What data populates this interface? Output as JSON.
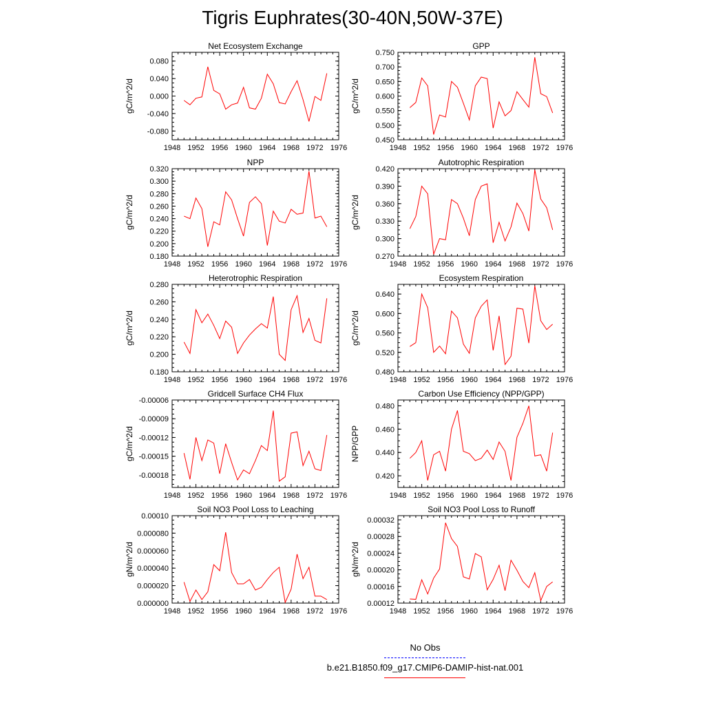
{
  "title": "Tigris Euphrates(30-40N,50W-37E)",
  "legend": {
    "obs_label": "No Obs",
    "obs_color": "#0000ff",
    "model_label": "b.e21.B1850.f09_g17.CMIP6-DAMIP-hist-nat.001",
    "model_color": "#ff0000"
  },
  "chart_data": [
    {
      "type": "line",
      "title": "Net Ecosystem Exchange",
      "ylabel": "gC/m^2/d",
      "xlim": [
        1948,
        1976
      ],
      "xticks": [
        1948,
        1952,
        1956,
        1960,
        1964,
        1968,
        1972,
        1976
      ],
      "ylim": [
        -0.1,
        0.1
      ],
      "yticks": [
        "-0.080",
        "-0.040",
        "0.000",
        "0.040",
        "0.080"
      ],
      "ytick_values": [
        -0.08,
        -0.04,
        0.0,
        0.04,
        0.08
      ],
      "x": [
        1950,
        1951,
        1952,
        1953,
        1954,
        1955,
        1956,
        1957,
        1958,
        1959,
        1960,
        1961,
        1962,
        1963,
        1964,
        1965,
        1966,
        1967,
        1968,
        1969,
        1970,
        1971,
        1972,
        1973,
        1974
      ],
      "values": [
        -0.01,
        -0.02,
        -0.005,
        -0.002,
        0.067,
        0.013,
        0.005,
        -0.03,
        -0.02,
        -0.016,
        0.02,
        -0.027,
        -0.03,
        -0.005,
        0.05,
        0.028,
        -0.015,
        -0.018,
        0.01,
        0.035,
        -0.008,
        -0.058,
        -0.001,
        -0.01,
        0.052
      ]
    },
    {
      "type": "line",
      "title": "GPP",
      "ylabel": "gC/m^2/d",
      "xlim": [
        1948,
        1976
      ],
      "xticks": [
        1948,
        1952,
        1956,
        1960,
        1964,
        1968,
        1972,
        1976
      ],
      "ylim": [
        0.45,
        0.75
      ],
      "yticks": [
        "0.450",
        "0.500",
        "0.550",
        "0.600",
        "0.650",
        "0.700",
        "0.750"
      ],
      "ytick_values": [
        0.45,
        0.5,
        0.55,
        0.6,
        0.65,
        0.7,
        0.75
      ],
      "x": [
        1950,
        1951,
        1952,
        1953,
        1954,
        1955,
        1956,
        1957,
        1958,
        1959,
        1960,
        1961,
        1962,
        1963,
        1964,
        1965,
        1966,
        1967,
        1968,
        1969,
        1970,
        1971,
        1972,
        1973,
        1974
      ],
      "values": [
        0.56,
        0.578,
        0.662,
        0.635,
        0.468,
        0.535,
        0.528,
        0.65,
        0.63,
        0.575,
        0.518,
        0.635,
        0.665,
        0.66,
        0.49,
        0.58,
        0.532,
        0.55,
        0.615,
        0.588,
        0.562,
        0.733,
        0.608,
        0.598,
        0.542
      ]
    },
    {
      "type": "line",
      "title": "NPP",
      "ylabel": "gC/m^2/d",
      "xlim": [
        1948,
        1976
      ],
      "xticks": [
        1948,
        1952,
        1956,
        1960,
        1964,
        1968,
        1972,
        1976
      ],
      "ylim": [
        0.18,
        0.32
      ],
      "yticks": [
        "0.180",
        "0.200",
        "0.220",
        "0.240",
        "0.260",
        "0.280",
        "0.300",
        "0.320"
      ],
      "ytick_values": [
        0.18,
        0.2,
        0.22,
        0.24,
        0.26,
        0.28,
        0.3,
        0.32
      ],
      "x": [
        1950,
        1951,
        1952,
        1953,
        1954,
        1955,
        1956,
        1957,
        1958,
        1959,
        1960,
        1961,
        1962,
        1963,
        1964,
        1965,
        1966,
        1967,
        1968,
        1969,
        1970,
        1971,
        1972,
        1973,
        1974
      ],
      "values": [
        0.244,
        0.24,
        0.273,
        0.256,
        0.195,
        0.235,
        0.23,
        0.283,
        0.27,
        0.24,
        0.212,
        0.266,
        0.275,
        0.264,
        0.197,
        0.252,
        0.236,
        0.233,
        0.255,
        0.247,
        0.249,
        0.316,
        0.241,
        0.244,
        0.227
      ]
    },
    {
      "type": "line",
      "title": "Autotrophic Respiration",
      "ylabel": "gC/m^2/d",
      "xlim": [
        1948,
        1976
      ],
      "xticks": [
        1948,
        1952,
        1956,
        1960,
        1964,
        1968,
        1972,
        1976
      ],
      "ylim": [
        0.27,
        0.42
      ],
      "yticks": [
        "0.270",
        "0.300",
        "0.330",
        "0.360",
        "0.390",
        "0.420"
      ],
      "ytick_values": [
        0.27,
        0.3,
        0.33,
        0.36,
        0.39,
        0.42
      ],
      "x": [
        1950,
        1951,
        1952,
        1953,
        1954,
        1955,
        1956,
        1957,
        1958,
        1959,
        1960,
        1961,
        1962,
        1963,
        1964,
        1965,
        1966,
        1967,
        1968,
        1969,
        1970,
        1971,
        1972,
        1973,
        1974
      ],
      "values": [
        0.317,
        0.338,
        0.39,
        0.377,
        0.273,
        0.3,
        0.298,
        0.367,
        0.36,
        0.335,
        0.305,
        0.367,
        0.39,
        0.394,
        0.293,
        0.328,
        0.296,
        0.32,
        0.361,
        0.343,
        0.313,
        0.418,
        0.368,
        0.353,
        0.315
      ]
    },
    {
      "type": "line",
      "title": "Heterotrophic Respiration",
      "ylabel": "gC/m^2/d",
      "xlim": [
        1948,
        1976
      ],
      "xticks": [
        1948,
        1952,
        1956,
        1960,
        1964,
        1968,
        1972,
        1976
      ],
      "ylim": [
        0.18,
        0.28
      ],
      "yticks": [
        "0.180",
        "0.200",
        "0.220",
        "0.240",
        "0.260",
        "0.280"
      ],
      "ytick_values": [
        0.18,
        0.2,
        0.22,
        0.24,
        0.26,
        0.28
      ],
      "x": [
        1950,
        1951,
        1952,
        1953,
        1954,
        1955,
        1956,
        1957,
        1958,
        1959,
        1960,
        1961,
        1962,
        1963,
        1964,
        1965,
        1966,
        1967,
        1968,
        1969,
        1970,
        1971,
        1972,
        1973,
        1974
      ],
      "values": [
        0.214,
        0.201,
        0.251,
        0.236,
        0.246,
        0.233,
        0.218,
        0.238,
        0.231,
        0.201,
        0.213,
        0.222,
        0.229,
        0.235,
        0.23,
        0.266,
        0.2,
        0.193,
        0.251,
        0.267,
        0.225,
        0.241,
        0.216,
        0.213,
        0.264
      ]
    },
    {
      "type": "line",
      "title": "Ecosystem Respiration",
      "ylabel": "gC/m^2/d",
      "xlim": [
        1948,
        1976
      ],
      "xticks": [
        1948,
        1952,
        1956,
        1960,
        1964,
        1968,
        1972,
        1976
      ],
      "ylim": [
        0.48,
        0.66
      ],
      "yticks": [
        "0.480",
        "0.520",
        "0.560",
        "0.600",
        "0.640"
      ],
      "ytick_values": [
        0.48,
        0.52,
        0.56,
        0.6,
        0.64
      ],
      "x": [
        1950,
        1951,
        1952,
        1953,
        1954,
        1955,
        1956,
        1957,
        1958,
        1959,
        1960,
        1961,
        1962,
        1963,
        1964,
        1965,
        1966,
        1967,
        1968,
        1969,
        1970,
        1971,
        1972,
        1973,
        1974
      ],
      "values": [
        0.532,
        0.54,
        0.64,
        0.612,
        0.52,
        0.533,
        0.517,
        0.605,
        0.591,
        0.537,
        0.518,
        0.591,
        0.615,
        0.628,
        0.524,
        0.595,
        0.495,
        0.512,
        0.611,
        0.609,
        0.539,
        0.657,
        0.585,
        0.567,
        0.578
      ]
    },
    {
      "type": "line",
      "title": "Gridcell Surface CH4 Flux",
      "ylabel": "gC/m^2/d",
      "xlim": [
        1948,
        1976
      ],
      "xticks": [
        1948,
        1952,
        1956,
        1960,
        1964,
        1968,
        1972,
        1976
      ],
      "ylim": [
        -0.0002,
        -6e-05
      ],
      "yticks": [
        "-0.00018",
        "-0.00015",
        "-0.00012",
        "-0.00009",
        "-0.00006"
      ],
      "ytick_values": [
        -0.00018,
        -0.00015,
        -0.00012,
        -9e-05,
        -6e-05
      ],
      "x": [
        1950,
        1951,
        1952,
        1953,
        1954,
        1955,
        1956,
        1957,
        1958,
        1959,
        1960,
        1961,
        1962,
        1963,
        1964,
        1965,
        1966,
        1967,
        1968,
        1969,
        1970,
        1971,
        1972,
        1973,
        1974
      ],
      "values": [
        -0.000145,
        -0.000187,
        -0.00012,
        -0.000157,
        -0.000124,
        -0.000129,
        -0.000178,
        -0.00013,
        -0.00016,
        -0.000188,
        -0.000172,
        -0.000178,
        -0.000157,
        -0.000133,
        -0.000141,
        -7.7e-05,
        -0.00019,
        -0.000183,
        -0.000113,
        -0.000111,
        -0.000165,
        -0.000142,
        -0.00017,
        -0.000173,
        -0.000116
      ]
    },
    {
      "type": "line",
      "title": "Carbon Use Efficiency (NPP/GPP)",
      "ylabel": "NPP/GPP",
      "xlim": [
        1948,
        1976
      ],
      "xticks": [
        1948,
        1952,
        1956,
        1960,
        1964,
        1968,
        1972,
        1976
      ],
      "ylim": [
        0.41,
        0.485
      ],
      "yticks": [
        "0.420",
        "0.440",
        "0.460",
        "0.480"
      ],
      "ytick_values": [
        0.42,
        0.44,
        0.46,
        0.48
      ],
      "x": [
        1950,
        1951,
        1952,
        1953,
        1954,
        1955,
        1956,
        1957,
        1958,
        1959,
        1960,
        1961,
        1962,
        1963,
        1964,
        1965,
        1966,
        1967,
        1968,
        1969,
        1970,
        1971,
        1972,
        1973,
        1974
      ],
      "values": [
        0.435,
        0.44,
        0.45,
        0.416,
        0.438,
        0.441,
        0.424,
        0.46,
        0.476,
        0.441,
        0.439,
        0.433,
        0.435,
        0.442,
        0.434,
        0.449,
        0.441,
        0.416,
        0.453,
        0.465,
        0.48,
        0.437,
        0.438,
        0.424,
        0.457
      ]
    },
    {
      "type": "line",
      "title": "Soil NO3 Pool Loss to Leaching",
      "ylabel": "gN/m^2/d",
      "xlim": [
        1948,
        1976
      ],
      "xticks": [
        1948,
        1952,
        1956,
        1960,
        1964,
        1968,
        1972,
        1976
      ],
      "ylim": [
        0,
        0.0001
      ],
      "yticks": [
        "0.000000",
        "0.000020",
        "0.000040",
        "0.000060",
        "0.000080",
        "0.00010"
      ],
      "ytick_values": [
        0,
        2e-05,
        4e-05,
        6e-05,
        8e-05,
        0.0001
      ],
      "x": [
        1950,
        1951,
        1952,
        1953,
        1954,
        1955,
        1956,
        1957,
        1958,
        1959,
        1960,
        1961,
        1962,
        1963,
        1964,
        1965,
        1966,
        1967,
        1968,
        1969,
        1970,
        1971,
        1972,
        1973,
        1974
      ],
      "values": [
        2.4e-05,
        2e-06,
        1.5e-05,
        4e-06,
        1.3e-05,
        4.4e-05,
        3.7e-05,
        8.1e-05,
        3.5e-05,
        2.2e-05,
        2.2e-05,
        2.7e-05,
        1.5e-05,
        1.8e-05,
        2.7e-05,
        3.5e-05,
        4.1e-05,
        8e-07,
        1.6e-05,
        5.6e-05,
        2.8e-05,
        4.1e-05,
        8e-06,
        8e-06,
        4e-06
      ]
    },
    {
      "type": "line",
      "title": "Soil NO3 Pool Loss to Runoff",
      "ylabel": "gN/m^2/d",
      "xlim": [
        1948,
        1976
      ],
      "xticks": [
        1948,
        1952,
        1956,
        1960,
        1964,
        1968,
        1972,
        1976
      ],
      "ylim": [
        0.00012,
        0.00033
      ],
      "yticks": [
        "0.00012",
        "0.00016",
        "0.00020",
        "0.00024",
        "0.00028",
        "0.00032"
      ],
      "ytick_values": [
        0.00012,
        0.00016,
        0.0002,
        0.00024,
        0.00028,
        0.00032
      ],
      "x": [
        1950,
        1951,
        1952,
        1953,
        1954,
        1955,
        1956,
        1957,
        1958,
        1959,
        1960,
        1961,
        1962,
        1963,
        1964,
        1965,
        1966,
        1967,
        1968,
        1969,
        1970,
        1971,
        1972,
        1973,
        1974
      ],
      "values": [
        0.00013,
        0.000129,
        0.000176,
        0.000142,
        0.00018,
        0.000202,
        0.000313,
        0.000275,
        0.000256,
        0.000183,
        0.000178,
        0.000239,
        0.000231,
        0.000152,
        0.000177,
        0.000211,
        0.00015,
        0.000223,
        0.000199,
        0.000172,
        0.000157,
        0.000193,
        0.000126,
        0.00016,
        0.000171
      ]
    }
  ]
}
